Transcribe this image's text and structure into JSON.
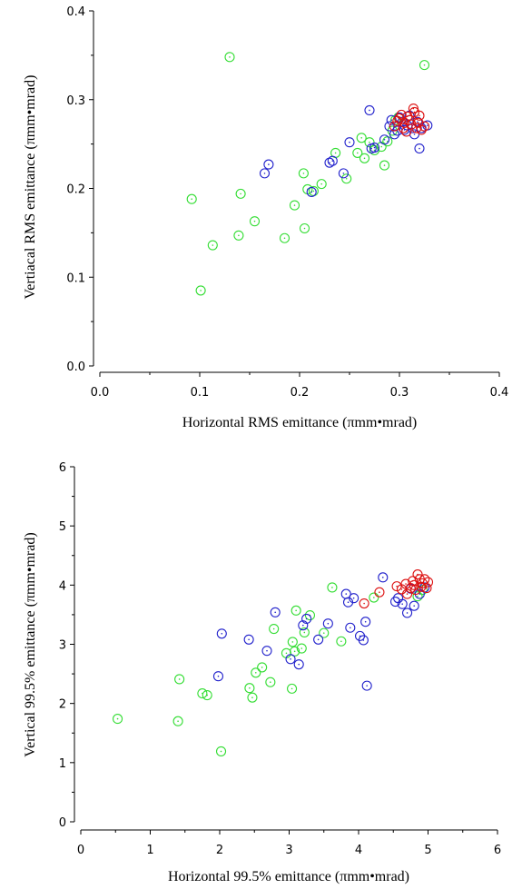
{
  "colors": {
    "green": "#33dd33",
    "blue": "#2222cc",
    "red": "#dd1111"
  },
  "chart_data": [
    {
      "type": "scatter",
      "title": "",
      "xlabel": "Horizontal RMS emittance (πmm•mrad)",
      "ylabel": "Vertiacal RMS emittance (πmm•mrad)",
      "xlim": [
        0,
        0.4
      ],
      "ylim": [
        0,
        0.4
      ],
      "xticks": [
        "0.0",
        "0.1",
        "0.2",
        "0.3",
        "0.4"
      ],
      "yticks": [
        "0.0",
        "0.1",
        "0.2",
        "0.3",
        "0.4"
      ],
      "grid": false,
      "series": [
        {
          "color": "green",
          "x": [
            0.13,
            0.325,
            0.092,
            0.101,
            0.113,
            0.139,
            0.141,
            0.155,
            0.185,
            0.195,
            0.205,
            0.204,
            0.208,
            0.214,
            0.222,
            0.236,
            0.247,
            0.258,
            0.262,
            0.265,
            0.27,
            0.275,
            0.282,
            0.285,
            0.288,
            0.293,
            0.296,
            0.299
          ],
          "y": [
            0.348,
            0.339,
            0.188,
            0.085,
            0.136,
            0.147,
            0.194,
            0.163,
            0.144,
            0.181,
            0.155,
            0.217,
            0.199,
            0.197,
            0.205,
            0.24,
            0.211,
            0.24,
            0.257,
            0.234,
            0.252,
            0.243,
            0.247,
            0.226,
            0.253,
            0.265,
            0.277,
            0.28
          ]
        },
        {
          "color": "blue",
          "x": [
            0.165,
            0.169,
            0.212,
            0.23,
            0.233,
            0.244,
            0.25,
            0.27,
            0.272,
            0.275,
            0.285,
            0.29,
            0.292,
            0.295,
            0.298,
            0.3,
            0.303,
            0.305,
            0.308,
            0.31,
            0.313,
            0.315,
            0.318,
            0.32,
            0.322,
            0.328
          ],
          "y": [
            0.217,
            0.227,
            0.196,
            0.229,
            0.231,
            0.217,
            0.252,
            0.288,
            0.245,
            0.246,
            0.255,
            0.27,
            0.277,
            0.261,
            0.265,
            0.28,
            0.275,
            0.266,
            0.271,
            0.282,
            0.268,
            0.261,
            0.275,
            0.245,
            0.268,
            0.271
          ]
        },
        {
          "color": "red",
          "x": [
            0.295,
            0.298,
            0.3,
            0.302,
            0.304,
            0.305,
            0.307,
            0.308,
            0.31,
            0.312,
            0.314,
            0.315,
            0.317,
            0.319,
            0.32,
            0.322,
            0.325
          ],
          "y": [
            0.27,
            0.276,
            0.279,
            0.283,
            0.268,
            0.274,
            0.264,
            0.281,
            0.277,
            0.272,
            0.29,
            0.286,
            0.268,
            0.274,
            0.282,
            0.266,
            0.27
          ]
        }
      ]
    },
    {
      "type": "scatter",
      "title": "",
      "xlabel": "Horizontal 99.5% emittance (πmm•mrad)",
      "ylabel": "Vertical 99.5% emittance (πmm•mrad)",
      "xlim": [
        0,
        6
      ],
      "ylim": [
        0,
        6
      ],
      "xticks": [
        "0",
        "1",
        "2",
        "3",
        "4",
        "5",
        "6"
      ],
      "yticks": [
        "0",
        "1",
        "2",
        "3",
        "4",
        "5",
        "6"
      ],
      "grid": false,
      "series": [
        {
          "color": "green",
          "x": [
            0.53,
            1.4,
            1.42,
            1.75,
            1.82,
            2.02,
            2.43,
            2.47,
            2.52,
            2.61,
            2.73,
            2.78,
            2.96,
            3.04,
            3.05,
            3.1,
            3.08,
            3.18,
            3.22,
            3.3,
            3.5,
            3.62,
            3.75,
            4.22,
            4.85,
            4.92
          ],
          "y": [
            1.74,
            1.7,
            2.41,
            2.17,
            2.14,
            1.19,
            2.26,
            2.1,
            2.52,
            2.61,
            2.36,
            3.26,
            2.85,
            2.25,
            3.04,
            3.57,
            2.88,
            2.93,
            3.2,
            3.49,
            3.19,
            3.96,
            3.05,
            3.79,
            3.81,
            3.92
          ]
        },
        {
          "color": "blue",
          "x": [
            1.98,
            2.03,
            2.42,
            2.68,
            2.8,
            3.02,
            3.14,
            3.2,
            3.25,
            3.42,
            3.56,
            3.82,
            3.85,
            3.88,
            3.93,
            4.02,
            4.07,
            4.1,
            4.12,
            4.35,
            4.53,
            4.57,
            4.63,
            4.7,
            4.75,
            4.8,
            4.88,
            4.95
          ],
          "y": [
            2.46,
            3.18,
            3.08,
            2.89,
            3.54,
            2.75,
            2.66,
            3.32,
            3.43,
            3.08,
            3.35,
            3.85,
            3.71,
            3.28,
            3.78,
            3.14,
            3.07,
            3.38,
            2.3,
            4.13,
            3.72,
            3.78,
            3.68,
            3.53,
            3.94,
            3.65,
            3.85,
            3.96
          ]
        },
        {
          "color": "red",
          "x": [
            4.08,
            4.3,
            4.55,
            4.62,
            4.68,
            4.7,
            4.75,
            4.78,
            4.8,
            4.82,
            4.85,
            4.88,
            4.9,
            4.92,
            4.95,
            4.98,
            5.0
          ],
          "y": [
            3.69,
            3.88,
            3.98,
            3.93,
            4.02,
            3.85,
            3.95,
            4.07,
            4.0,
            3.92,
            4.18,
            4.1,
            3.97,
            4.03,
            4.1,
            3.95,
            4.05
          ]
        }
      ]
    }
  ]
}
